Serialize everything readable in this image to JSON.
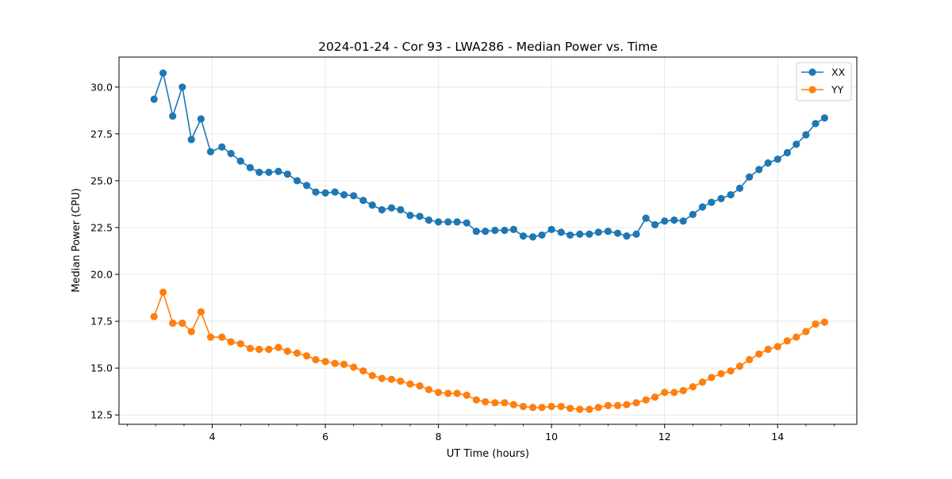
{
  "chart_data": {
    "type": "line",
    "title": "2024-01-24 - Cor 93 - LWA286 - Median Power vs. Time",
    "xlabel": "UT Time (hours)",
    "ylabel": "Median Power (CPU)",
    "xlim": [
      2.35,
      15.4
    ],
    "ylim": [
      12.0,
      31.6
    ],
    "xticks": [
      4,
      6,
      8,
      10,
      12,
      14
    ],
    "yticks": [
      12.5,
      15.0,
      17.5,
      20.0,
      22.5,
      25.0,
      27.5,
      30.0
    ],
    "grid": true,
    "legend_position": "top-right",
    "x": [
      2.97,
      3.13,
      3.3,
      3.47,
      3.63,
      3.8,
      3.97,
      4.17,
      4.33,
      4.5,
      4.67,
      4.83,
      5.0,
      5.17,
      5.33,
      5.5,
      5.67,
      5.83,
      6.0,
      6.17,
      6.33,
      6.5,
      6.67,
      6.83,
      7.0,
      7.17,
      7.33,
      7.5,
      7.67,
      7.83,
      8.0,
      8.17,
      8.33,
      8.5,
      8.67,
      8.83,
      9.0,
      9.17,
      9.33,
      9.5,
      9.67,
      9.83,
      10.0,
      10.17,
      10.33,
      10.5,
      10.67,
      10.83,
      11.0,
      11.17,
      11.33,
      11.5,
      11.67,
      11.83,
      12.0,
      12.17,
      12.33,
      12.5,
      12.67,
      12.83,
      13.0,
      13.17,
      13.33,
      13.5,
      13.67,
      13.83,
      14.0,
      14.17,
      14.33,
      14.5,
      14.67,
      14.83
    ],
    "series": [
      {
        "name": "XX",
        "color": "#1f77b4",
        "values": [
          29.35,
          30.75,
          28.45,
          30.0,
          27.2,
          28.3,
          26.55,
          26.8,
          26.45,
          26.05,
          25.7,
          25.45,
          25.45,
          25.5,
          25.35,
          25.0,
          24.75,
          24.4,
          24.35,
          24.4,
          24.25,
          24.2,
          23.95,
          23.7,
          23.45,
          23.55,
          23.45,
          23.15,
          23.1,
          22.9,
          22.8,
          22.8,
          22.8,
          22.75,
          22.3,
          22.3,
          22.35,
          22.35,
          22.4,
          22.05,
          22.0,
          22.1,
          22.4,
          22.25,
          22.1,
          22.15,
          22.15,
          22.25,
          22.3,
          22.2,
          22.05,
          22.15,
          23.0,
          22.65,
          22.85,
          22.9,
          22.85,
          23.2,
          23.6,
          23.85,
          24.05,
          24.25,
          24.6,
          25.2,
          25.6,
          25.95,
          26.15,
          26.5,
          26.95,
          27.45,
          28.05,
          28.35
        ]
      },
      {
        "name": "YY",
        "color": "#ff7f0e",
        "values": [
          17.75,
          19.05,
          17.4,
          17.4,
          16.95,
          18.0,
          16.65,
          16.65,
          16.4,
          16.3,
          16.05,
          16.0,
          16.0,
          16.1,
          15.9,
          15.8,
          15.65,
          15.45,
          15.35,
          15.25,
          15.2,
          15.05,
          14.85,
          14.6,
          14.45,
          14.4,
          14.3,
          14.15,
          14.05,
          13.85,
          13.7,
          13.65,
          13.65,
          13.55,
          13.3,
          13.2,
          13.15,
          13.15,
          13.05,
          12.95,
          12.9,
          12.9,
          12.95,
          12.95,
          12.85,
          12.8,
          12.8,
          12.9,
          13.0,
          13.0,
          13.05,
          13.15,
          13.3,
          13.45,
          13.7,
          13.7,
          13.8,
          14.0,
          14.25,
          14.5,
          14.7,
          14.85,
          15.1,
          15.45,
          15.75,
          16.0,
          16.15,
          16.45,
          16.65,
          16.95,
          17.35,
          17.45
        ]
      }
    ]
  }
}
